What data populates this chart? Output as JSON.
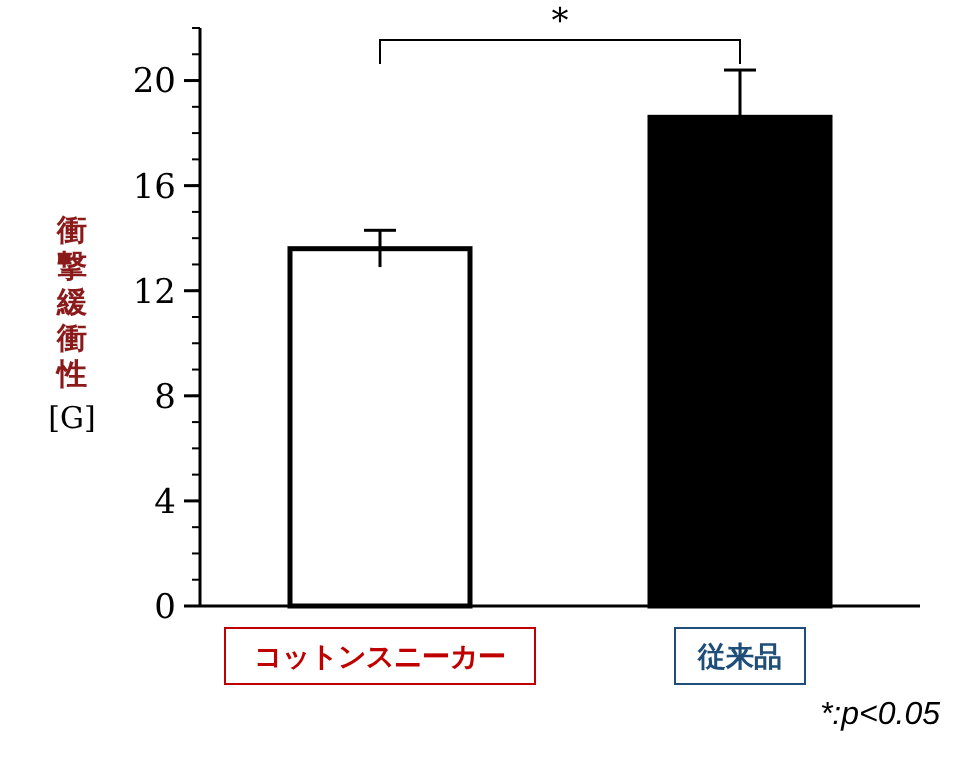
{
  "chart_data": {
    "type": "bar",
    "ylabel": "衝撃緩衝性 [G]",
    "categories": [
      "コットンスニーカー",
      "従来品"
    ],
    "values": [
      13.6,
      18.6
    ],
    "colors": [
      "#ffffff",
      "#000000"
    ],
    "errors": [
      0.7,
      1.8
    ],
    "ylim": [
      0,
      22
    ],
    "yticks": [
      0,
      4,
      8,
      12,
      16,
      20
    ],
    "grid": false,
    "annotations": [
      "*",
      "*:p<0.05"
    ]
  }
}
